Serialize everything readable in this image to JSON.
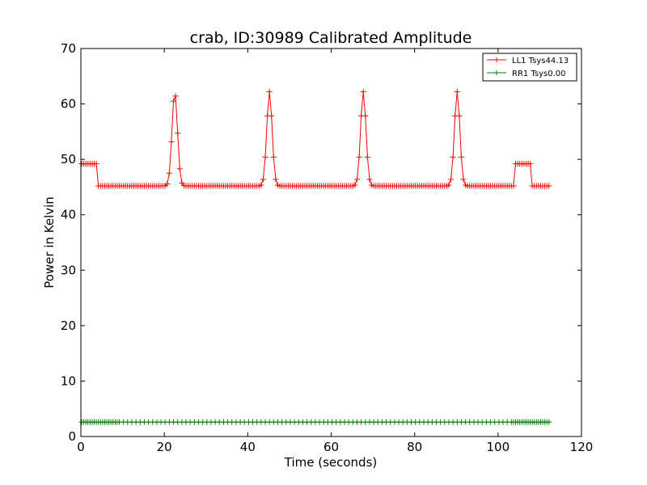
{
  "chart_data": {
    "type": "line",
    "title": "crab, ID:30989 Calibrated Amplitude",
    "xlabel": "Time (seconds)",
    "ylabel": "Power in Kelvin",
    "xlim": [
      0,
      120
    ],
    "ylim": [
      0,
      70
    ],
    "xticks": [
      0,
      20,
      40,
      60,
      80,
      100,
      120
    ],
    "yticks": [
      0,
      10,
      20,
      30,
      40,
      50,
      60,
      70
    ],
    "grid": false,
    "legend_position": "top-right",
    "marker": "plus",
    "series": [
      {
        "name": "LL1 Tsys44.13",
        "color": "#ff0000",
        "base_level": 45.2,
        "calibration_level": 49.2,
        "peaks": [
          {
            "x": 22.5,
            "y": 62.2
          },
          {
            "x": 45.2,
            "y": 62.2
          },
          {
            "x": 67.7,
            "y": 62.2
          },
          {
            "x": 90.2,
            "y": 62.2
          }
        ],
        "sample_start": 0.2,
        "sample_end": 112.2
      },
      {
        "name": "RR1 Tsys0.00",
        "color": "#008000",
        "level": 2.6,
        "sample_start": 0.2,
        "sample_end": 112.2
      }
    ]
  }
}
